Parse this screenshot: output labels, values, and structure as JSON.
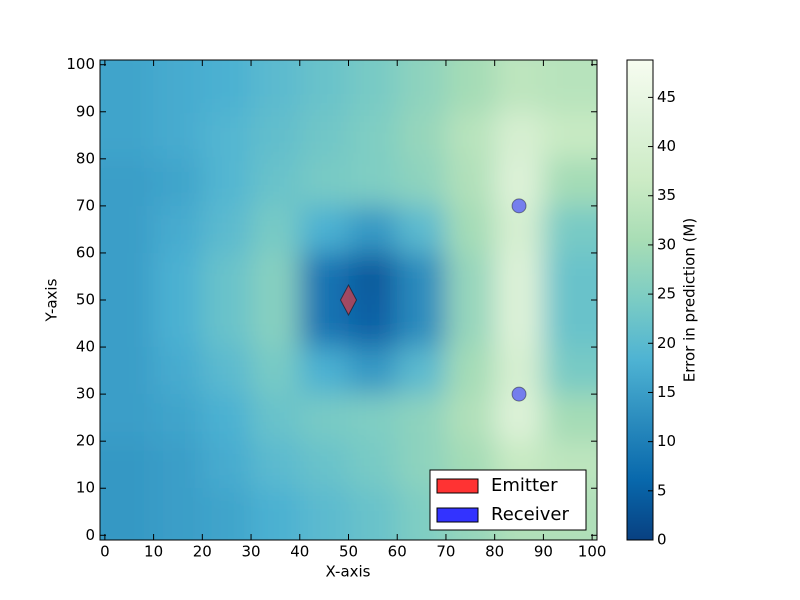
{
  "chart_data": {
    "type": "heatmap",
    "xlabel": "X-axis",
    "ylabel": "Y-axis",
    "xlim": [
      -1,
      101
    ],
    "ylim": [
      -1,
      101
    ],
    "xticks": [
      0,
      10,
      20,
      30,
      40,
      50,
      60,
      70,
      80,
      90,
      100
    ],
    "yticks": [
      0,
      10,
      20,
      30,
      40,
      50,
      60,
      70,
      80,
      90,
      100
    ],
    "x_centers": [
      5,
      15,
      25,
      35,
      45,
      55,
      65,
      75,
      85,
      95
    ],
    "y_centers": [
      95,
      85,
      75,
      65,
      55,
      45,
      35,
      25,
      15,
      5
    ],
    "z": [
      [
        16,
        17,
        18,
        20,
        22,
        24,
        27,
        30,
        34,
        33
      ],
      [
        16,
        17,
        19,
        21,
        23,
        25,
        28,
        33,
        40,
        36
      ],
      [
        15,
        16,
        19,
        22,
        24,
        25,
        27,
        32,
        42,
        30
      ],
      [
        15,
        17,
        20,
        24,
        18,
        14,
        20,
        30,
        40,
        24
      ],
      [
        15,
        18,
        22,
        26,
        8,
        4,
        12,
        28,
        42,
        22
      ],
      [
        15,
        18,
        22,
        26,
        8,
        5,
        12,
        28,
        42,
        22
      ],
      [
        15,
        17,
        20,
        24,
        18,
        14,
        20,
        30,
        40,
        24
      ],
      [
        15,
        16,
        18,
        22,
        24,
        25,
        27,
        32,
        42,
        30
      ],
      [
        14,
        15,
        17,
        20,
        22,
        24,
        27,
        30,
        36,
        34
      ],
      [
        14,
        15,
        16,
        18,
        20,
        22,
        25,
        28,
        32,
        32
      ]
    ],
    "colormap": [
      "#084081",
      "#0868ac",
      "#2b8cbe",
      "#4eb3d3",
      "#7bccc4",
      "#a8ddb5",
      "#ccebc5",
      "#e0f3db",
      "#f7fcf0"
    ],
    "colorbar": {
      "label": "Error in prediction (M)",
      "lim": [
        0,
        48.8
      ],
      "ticks": [
        0,
        5,
        10,
        15,
        20,
        25,
        30,
        35,
        40,
        45
      ]
    },
    "series": [
      {
        "name": "Emitter",
        "color": "#ff3333",
        "marker": "diamond",
        "x": [
          50
        ],
        "y": [
          50
        ]
      },
      {
        "name": "Receiver",
        "color": "#3333ff",
        "marker": "circle",
        "x": [
          85,
          85
        ],
        "y": [
          70,
          30
        ]
      }
    ],
    "legend": "lower right"
  }
}
